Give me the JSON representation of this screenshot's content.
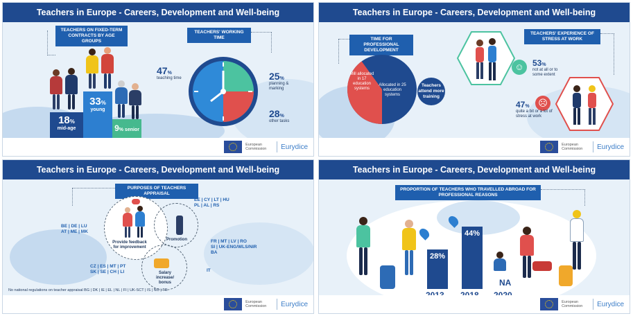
{
  "header_title": "Teachers in Europe - Careers, Development and Well-being",
  "footer": {
    "ec_label": "European Commission",
    "brand": "Eurydice"
  },
  "panel1": {
    "tag_contracts": "TEACHERS ON FIXED-TERM CONTRACTS BY AGE GROUPS",
    "tag_time": "TEACHERS' WORKING TIME",
    "mid_age_pct": "18",
    "mid_age_label": "mid-age",
    "young_pct": "33",
    "young_label": "young",
    "senior_pct": "9",
    "senior_label": "senior",
    "teaching_pct": "47",
    "teaching_label": "teaching time",
    "planning_pct": "25",
    "planning_label": "planning & marking",
    "other_pct": "28",
    "other_label": "other tasks"
  },
  "panel2": {
    "tag_dev": "TIME FOR PROFESSIONAL DEVELOPMENT",
    "tag_stress": "TEACHERS' EXPERIENCE OF STRESS AT WORK",
    "pie_red_text": "Mill allocated in 17 education systems",
    "pie_blue_text": "Allocated in 25 education systems",
    "attend_text": "Teachers attend more training",
    "stress_low_pct": "53",
    "stress_low_label": "not at all or to some extent",
    "stress_high_pct": "47",
    "stress_high_label": "quite a bit or a lot of stress at work",
    "pie_red_share": 0.4
  },
  "panel3": {
    "tag_appraisal": "PURPOSES OF TEACHERS APPRAISAL",
    "c_feedback": "Provide feedback for improvement",
    "c_promotion": "Promotion",
    "c_salary": "Salary increase/ bonus",
    "countries_left": "BE | DE | LU\nAT | ME | MK",
    "countries_top": "EE | CY | LT | HU\nPL | AL | RS",
    "countries_right": "FR | MT | LV | RO\nSI | UK-ENG/WLS/NIR\nBA",
    "countries_bottom": "CZ | ES | MT | PT\nSK | SE | CH | LI",
    "country_it": "IT",
    "footnote": "No national regulations on teacher appraisal  BG | DK | IE | EL | NL | FI | UK-SCT | IS | NO | TR"
  },
  "panel4": {
    "tag_abroad": "PROPORTION OF TEACHERS WHO TRAVELLED ABROAD FOR PROFESSIONAL REASONS",
    "bars": [
      {
        "pct": "28",
        "year": "2013",
        "value": 28
      },
      {
        "pct": "44",
        "year": "2018",
        "value": 44
      },
      {
        "pct": "NA",
        "year": "2020",
        "value": null
      }
    ],
    "pct_sign": "%"
  }
}
